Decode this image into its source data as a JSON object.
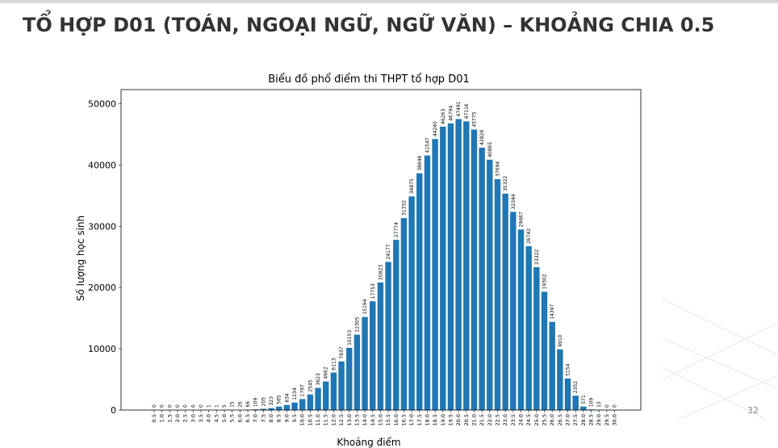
{
  "slide": {
    "title": "TỔ HỢP D01 (TOÁN, NGOẠI NGỮ, NGỮ VĂN) – KHOẢNG CHIA 0.5",
    "page_number": "32"
  },
  "colors": {
    "bar": "#1f77b4",
    "title": "#333333"
  },
  "chart_data": {
    "type": "bar",
    "title": "Biểu đồ phổ điểm thi THPT tổ hợp D01",
    "xlabel": "Khoảng điểm",
    "ylabel": "Số lượng học sinh",
    "ylim": [
      0,
      50000
    ],
    "yticks": [
      0,
      10000,
      20000,
      30000,
      40000,
      50000
    ],
    "grid": false,
    "categories": [
      "0.5",
      "1.0",
      "1.5",
      "2.0",
      "2.5",
      "3.0",
      "3.5",
      "4.0",
      "4.5",
      "5.0",
      "5.5",
      "6.0",
      "6.5",
      "7.0",
      "7.5",
      "8.0",
      "8.5",
      "9.0",
      "9.5",
      "10.0",
      "10.5",
      "11.0",
      "11.5",
      "12.0",
      "12.5",
      "13.0",
      "13.5",
      "14.0",
      "14.5",
      "15.0",
      "15.5",
      "16.0",
      "16.5",
      "17.0",
      "17.5",
      "18.0",
      "18.5",
      "19.0",
      "19.5",
      "20.0",
      "20.5",
      "21.0",
      "21.5",
      "22.0",
      "22.5",
      "23.0",
      "23.5",
      "24.0",
      "24.5",
      "25.0",
      "25.5",
      "26.0",
      "26.5",
      "27.0",
      "27.5",
      "28.0",
      "28.5",
      "29.0",
      "29.5",
      "30.0"
    ],
    "values": [
      0,
      0,
      0,
      0,
      0,
      0,
      0,
      1,
      1,
      5,
      15,
      26,
      66,
      109,
      205,
      323,
      565,
      834,
      1234,
      1797,
      2545,
      3623,
      4662,
      6113,
      7937,
      10153,
      12305,
      15194,
      17753,
      20823,
      24177,
      27774,
      31332,
      34875,
      38646,
      41547,
      44240,
      46263,
      46794,
      47491,
      47116,
      45775,
      42828,
      40865,
      37694,
      35322,
      32344,
      29467,
      26742,
      23322,
      19302,
      14397,
      9910,
      5154,
      2352,
      571,
      109,
      13,
      0,
      0
    ]
  }
}
